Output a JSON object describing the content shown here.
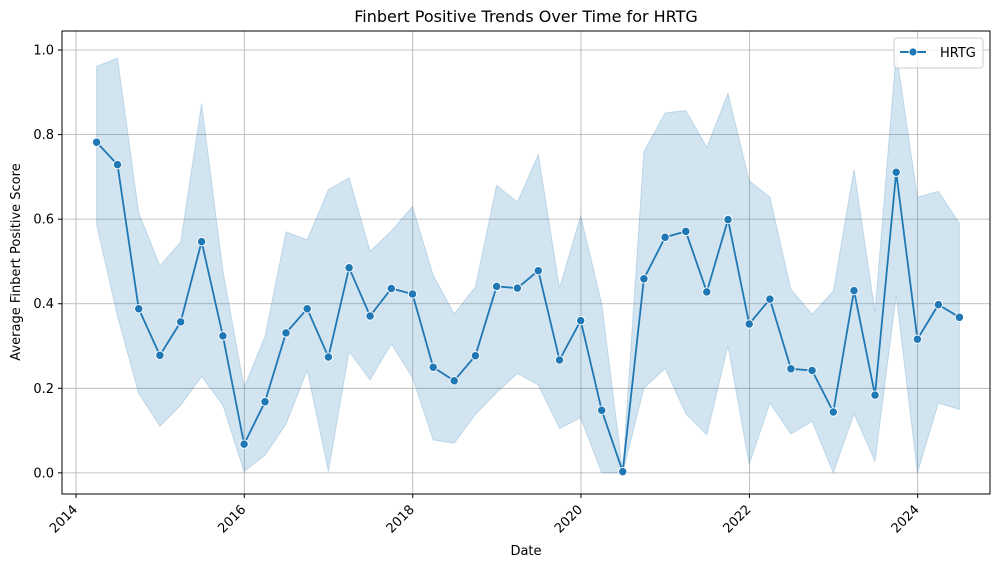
{
  "chart_data": {
    "type": "line",
    "title": "Finbert Positive Trends Over Time for HRTG",
    "xlabel": "Date",
    "ylabel": "Average Finbert Positive Score",
    "xlim": [
      "2013-11-01",
      "2024-11-10"
    ],
    "ylim": [
      -0.05,
      1.045
    ],
    "x_ticks": [
      "2014-01-01",
      "2016-01-01",
      "2018-01-01",
      "2020-01-01",
      "2022-01-01",
      "2024-01-01"
    ],
    "x_tick_labels": [
      "2014",
      "2016",
      "2018",
      "2020",
      "2022",
      "2024"
    ],
    "y_ticks": [
      0.0,
      0.2,
      0.4,
      0.6,
      0.8,
      1.0
    ],
    "y_tick_labels": [
      "0.0",
      "0.2",
      "0.4",
      "0.6",
      "0.8",
      "1.0"
    ],
    "grid": true,
    "legend_position": "top-right",
    "colors": {
      "line": "#1f77b4",
      "band": "#1f77b4",
      "grid": "#b0b0b0"
    },
    "series": [
      {
        "name": "HRTG",
        "x": [
          "2014-03-31",
          "2014-06-30",
          "2014-09-30",
          "2014-12-31",
          "2015-03-31",
          "2015-06-30",
          "2015-09-30",
          "2015-12-31",
          "2016-03-31",
          "2016-06-30",
          "2016-09-30",
          "2016-12-31",
          "2017-03-31",
          "2017-06-30",
          "2017-09-30",
          "2017-12-31",
          "2018-03-31",
          "2018-06-30",
          "2018-09-30",
          "2018-12-31",
          "2019-03-31",
          "2019-06-30",
          "2019-09-30",
          "2019-12-31",
          "2020-03-31",
          "2020-06-30",
          "2020-09-30",
          "2020-12-31",
          "2021-03-31",
          "2021-06-30",
          "2021-09-30",
          "2021-12-31",
          "2022-03-31",
          "2022-06-30",
          "2022-09-30",
          "2022-12-31",
          "2023-03-31",
          "2023-06-30",
          "2023-09-30",
          "2023-12-31",
          "2024-03-31",
          "2024-06-30"
        ],
        "y": [
          0.782,
          0.729,
          0.388,
          0.278,
          0.357,
          0.547,
          0.324,
          0.068,
          0.168,
          0.331,
          0.388,
          0.274,
          0.485,
          0.371,
          0.436,
          0.423,
          0.25,
          0.218,
          0.277,
          0.441,
          0.437,
          0.478,
          0.267,
          0.36,
          0.148,
          0.003,
          0.459,
          0.557,
          0.571,
          0.428,
          0.599,
          0.352,
          0.411,
          0.246,
          0.242,
          0.144,
          0.431,
          0.184,
          0.711,
          0.316,
          0.398,
          0.368
        ],
        "ci_lower": [
          0.587,
          0.37,
          0.188,
          0.11,
          0.16,
          0.228,
          0.16,
          0.003,
          0.042,
          0.115,
          0.243,
          0.003,
          0.287,
          0.22,
          0.305,
          0.225,
          0.078,
          0.07,
          0.138,
          0.19,
          0.235,
          0.208,
          0.105,
          0.13,
          0.0,
          0.0,
          0.2,
          0.247,
          0.14,
          0.09,
          0.3,
          0.02,
          0.165,
          0.092,
          0.122,
          0.0,
          0.14,
          0.027,
          0.42,
          0.0,
          0.165,
          0.15
        ],
        "ci_upper": [
          0.961,
          0.981,
          0.615,
          0.49,
          0.546,
          0.873,
          0.478,
          0.202,
          0.323,
          0.57,
          0.551,
          0.67,
          0.698,
          0.524,
          0.572,
          0.63,
          0.467,
          0.376,
          0.44,
          0.68,
          0.64,
          0.753,
          0.437,
          0.608,
          0.4,
          0.003,
          0.76,
          0.851,
          0.857,
          0.77,
          0.898,
          0.691,
          0.652,
          0.434,
          0.375,
          0.43,
          0.718,
          0.38,
          0.995,
          0.652,
          0.666,
          0.59
        ]
      }
    ]
  }
}
